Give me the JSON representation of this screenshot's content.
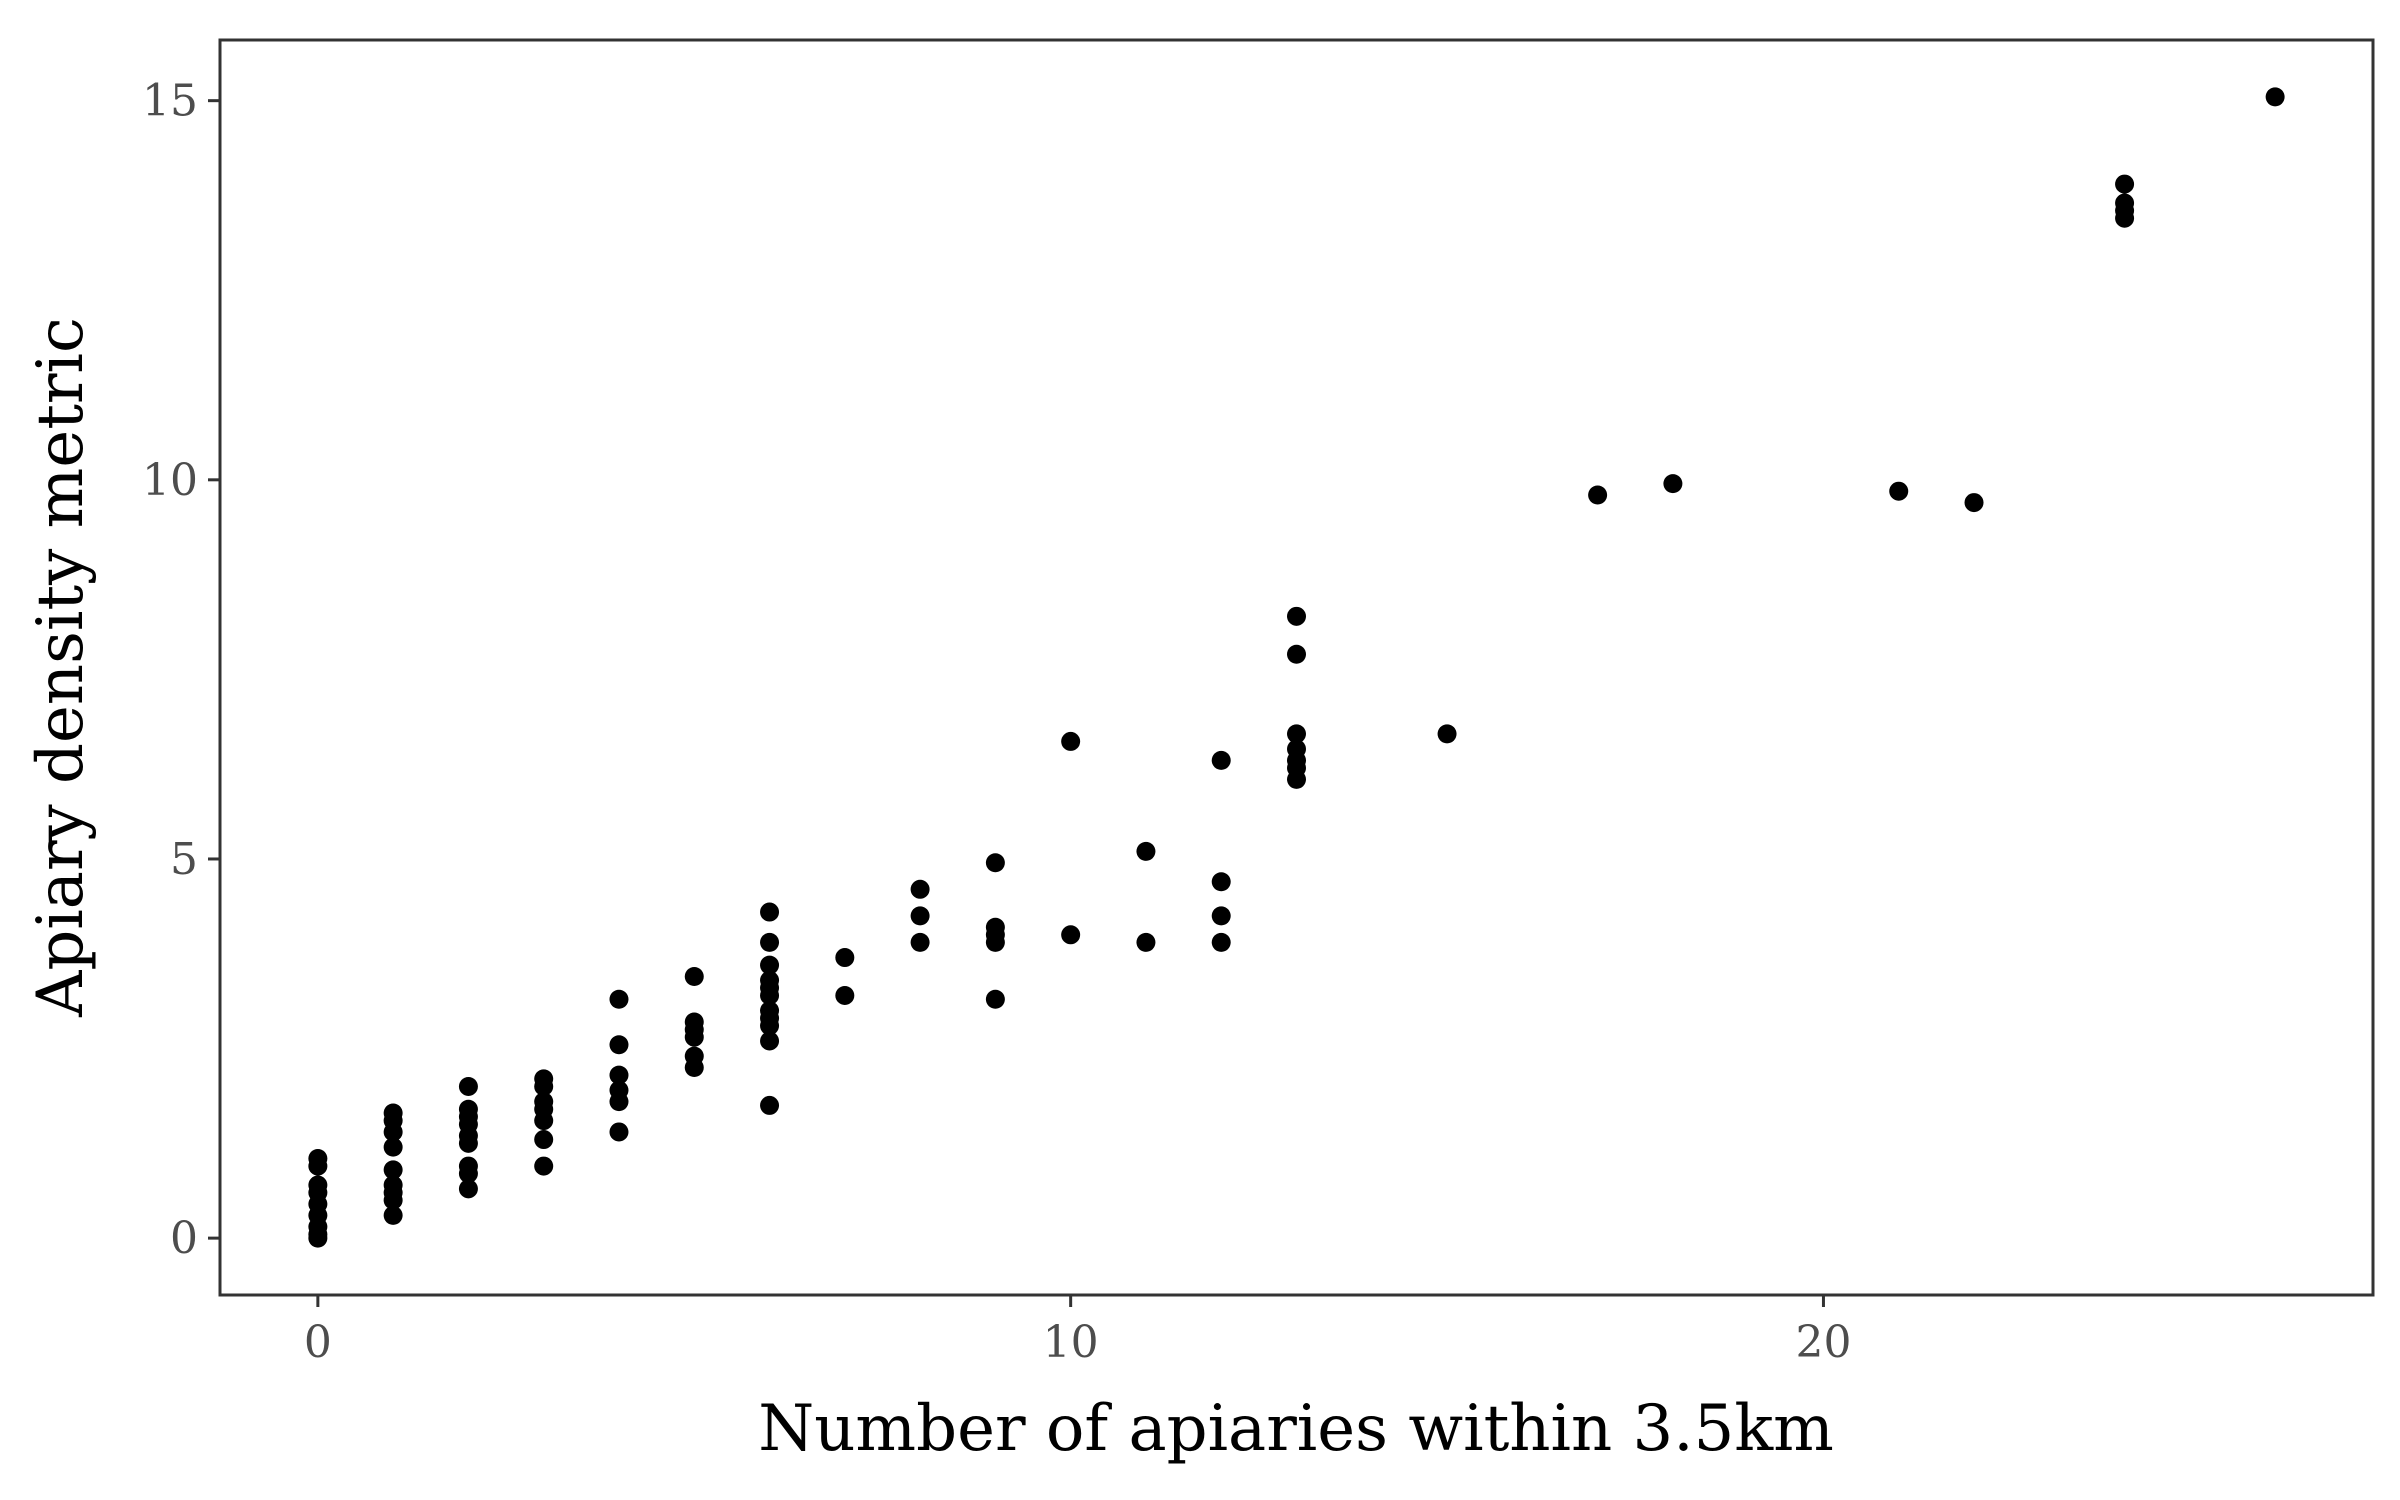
{
  "chart_data": {
    "type": "scatter",
    "title": "",
    "xlabel": "Number of apiaries within 3.5km",
    "ylabel": "Apiary density metric",
    "xlim": [
      -1.3,
      27.3
    ],
    "ylim": [
      -0.75,
      15.8
    ],
    "xticks": [
      0,
      10,
      20
    ],
    "yticks": [
      0,
      5,
      10,
      15
    ],
    "xtick_labels": [
      "0",
      "10",
      "20"
    ],
    "ytick_labels": [
      "0",
      "5",
      "10",
      "15"
    ],
    "grid": false,
    "legend": "none",
    "point_color": "#000000",
    "series": [
      {
        "points": [
          {
            "x": 0,
            "y": 0.0
          },
          {
            "x": 0,
            "y": 0.05
          },
          {
            "x": 0,
            "y": 0.15
          },
          {
            "x": 0,
            "y": 0.3
          },
          {
            "x": 0,
            "y": 0.45
          },
          {
            "x": 0,
            "y": 0.6
          },
          {
            "x": 0,
            "y": 0.7
          },
          {
            "x": 0,
            "y": 0.95
          },
          {
            "x": 0,
            "y": 1.05
          },
          {
            "x": 1,
            "y": 0.3
          },
          {
            "x": 1,
            "y": 0.5
          },
          {
            "x": 1,
            "y": 0.6
          },
          {
            "x": 1,
            "y": 0.7
          },
          {
            "x": 1,
            "y": 0.9
          },
          {
            "x": 1,
            "y": 1.2
          },
          {
            "x": 1,
            "y": 1.4
          },
          {
            "x": 1,
            "y": 1.55
          },
          {
            "x": 1,
            "y": 1.65
          },
          {
            "x": 2,
            "y": 0.65
          },
          {
            "x": 2,
            "y": 0.85
          },
          {
            "x": 2,
            "y": 0.95
          },
          {
            "x": 2,
            "y": 1.25
          },
          {
            "x": 2,
            "y": 1.35
          },
          {
            "x": 2,
            "y": 1.5
          },
          {
            "x": 2,
            "y": 1.6
          },
          {
            "x": 2,
            "y": 1.7
          },
          {
            "x": 2,
            "y": 2.0
          },
          {
            "x": 3,
            "y": 0.95
          },
          {
            "x": 3,
            "y": 1.3
          },
          {
            "x": 3,
            "y": 1.55
          },
          {
            "x": 3,
            "y": 1.7
          },
          {
            "x": 3,
            "y": 1.8
          },
          {
            "x": 3,
            "y": 2.0
          },
          {
            "x": 3,
            "y": 2.1
          },
          {
            "x": 4,
            "y": 1.4
          },
          {
            "x": 4,
            "y": 1.8
          },
          {
            "x": 4,
            "y": 1.95
          },
          {
            "x": 4,
            "y": 2.15
          },
          {
            "x": 4,
            "y": 2.55
          },
          {
            "x": 4,
            "y": 3.15
          },
          {
            "x": 5,
            "y": 2.25
          },
          {
            "x": 5,
            "y": 2.4
          },
          {
            "x": 5,
            "y": 2.65
          },
          {
            "x": 5,
            "y": 2.75
          },
          {
            "x": 5,
            "y": 2.85
          },
          {
            "x": 5,
            "y": 3.45
          },
          {
            "x": 6,
            "y": 1.75
          },
          {
            "x": 6,
            "y": 2.6
          },
          {
            "x": 6,
            "y": 2.8
          },
          {
            "x": 6,
            "y": 2.9
          },
          {
            "x": 6,
            "y": 3.0
          },
          {
            "x": 6,
            "y": 3.2
          },
          {
            "x": 6,
            "y": 3.3
          },
          {
            "x": 6,
            "y": 3.4
          },
          {
            "x": 6,
            "y": 3.6
          },
          {
            "x": 6,
            "y": 3.9
          },
          {
            "x": 6,
            "y": 4.3
          },
          {
            "x": 7,
            "y": 3.2
          },
          {
            "x": 7,
            "y": 3.7
          },
          {
            "x": 8,
            "y": 3.9
          },
          {
            "x": 8,
            "y": 4.25
          },
          {
            "x": 8,
            "y": 4.6
          },
          {
            "x": 9,
            "y": 3.15
          },
          {
            "x": 9,
            "y": 3.9
          },
          {
            "x": 9,
            "y": 4.0
          },
          {
            "x": 9,
            "y": 4.1
          },
          {
            "x": 9,
            "y": 4.95
          },
          {
            "x": 10,
            "y": 4.0
          },
          {
            "x": 10,
            "y": 6.55
          },
          {
            "x": 11,
            "y": 3.9
          },
          {
            "x": 11,
            "y": 5.1
          },
          {
            "x": 12,
            "y": 3.9
          },
          {
            "x": 12,
            "y": 4.25
          },
          {
            "x": 12,
            "y": 4.7
          },
          {
            "x": 12,
            "y": 6.3
          },
          {
            "x": 13,
            "y": 6.05
          },
          {
            "x": 13,
            "y": 6.2
          },
          {
            "x": 13,
            "y": 6.3
          },
          {
            "x": 13,
            "y": 6.45
          },
          {
            "x": 13,
            "y": 6.65
          },
          {
            "x": 13,
            "y": 7.7
          },
          {
            "x": 13,
            "y": 8.2
          },
          {
            "x": 15,
            "y": 6.65
          },
          {
            "x": 17,
            "y": 9.8
          },
          {
            "x": 18,
            "y": 9.95
          },
          {
            "x": 21,
            "y": 9.85
          },
          {
            "x": 22,
            "y": 9.7
          },
          {
            "x": 24,
            "y": 13.45
          },
          {
            "x": 24,
            "y": 13.55
          },
          {
            "x": 24,
            "y": 13.65
          },
          {
            "x": 24,
            "y": 13.9
          },
          {
            "x": 26,
            "y": 15.05
          }
        ]
      }
    ]
  }
}
